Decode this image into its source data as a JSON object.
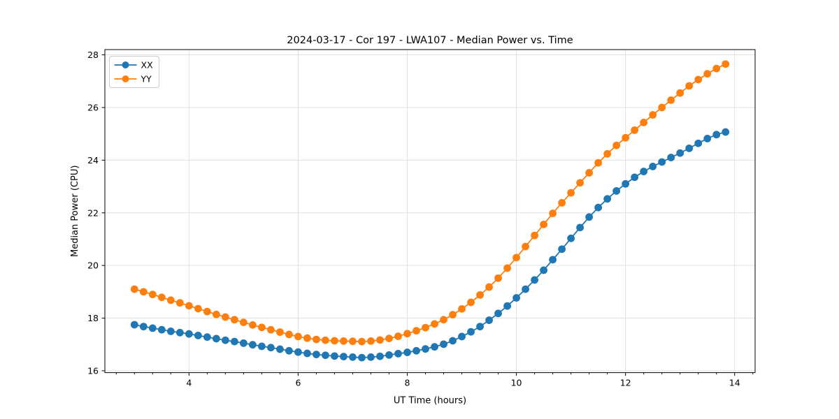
{
  "page": {
    "background": "#ffffff"
  },
  "chart_data": {
    "type": "line",
    "title": "2024-03-17 - Cor 197 - LWA107 - Median Power vs. Time",
    "xlabel": "UT Time (hours)",
    "ylabel": "Median Power (CPU)",
    "xlim": [
      2.458,
      14.375
    ],
    "ylim": [
      15.93,
      28.2
    ],
    "x_ticks": [
      4,
      6,
      8,
      10,
      12,
      14
    ],
    "y_ticks": [
      16,
      18,
      20,
      22,
      24,
      26,
      28
    ],
    "x_minor_tick_step": 0.3333,
    "grid": true,
    "legend_position": "upper-left",
    "legend": [
      "XX",
      "YY"
    ],
    "colors": {
      "XX": "#1f77b4",
      "YY": "#ff7f0e",
      "grid": "#e0e0e0",
      "spine": "#000000"
    },
    "x": [
      3.0,
      3.1667,
      3.3333,
      3.5,
      3.6667,
      3.8333,
      4.0,
      4.1667,
      4.3333,
      4.5,
      4.6667,
      4.8333,
      5.0,
      5.1667,
      5.3333,
      5.5,
      5.6667,
      5.8333,
      6.0,
      6.1667,
      6.3333,
      6.5,
      6.6667,
      6.8333,
      7.0,
      7.1667,
      7.3333,
      7.5,
      7.6667,
      7.8333,
      8.0,
      8.1667,
      8.3333,
      8.5,
      8.6667,
      8.8333,
      9.0,
      9.1667,
      9.3333,
      9.5,
      9.6667,
      9.8333,
      10.0,
      10.1667,
      10.3333,
      10.5,
      10.6667,
      10.8333,
      11.0,
      11.1667,
      11.3333,
      11.5,
      11.6667,
      11.8333,
      12.0,
      12.1667,
      12.3333,
      12.5,
      12.6667,
      12.8333,
      13.0,
      13.1667,
      13.3333,
      13.5,
      13.6667,
      13.8333
    ],
    "series": [
      {
        "name": "XX",
        "color": "#1f77b4",
        "values": [
          17.75,
          17.68,
          17.62,
          17.56,
          17.5,
          17.45,
          17.4,
          17.34,
          17.28,
          17.22,
          17.16,
          17.11,
          17.05,
          16.99,
          16.93,
          16.88,
          16.82,
          16.76,
          16.71,
          16.66,
          16.62,
          16.59,
          16.56,
          16.54,
          16.52,
          16.5,
          16.52,
          16.55,
          16.6,
          16.65,
          16.7,
          16.76,
          16.83,
          16.91,
          17.01,
          17.14,
          17.3,
          17.48,
          17.68,
          17.92,
          18.18,
          18.46,
          18.77,
          19.1,
          19.45,
          19.82,
          20.22,
          20.62,
          21.03,
          21.44,
          21.84,
          22.2,
          22.53,
          22.83,
          23.1,
          23.35,
          23.57,
          23.76,
          23.93,
          24.1,
          24.27,
          24.45,
          24.64,
          24.82,
          24.97,
          25.07
        ]
      },
      {
        "name": "YY",
        "color": "#ff7f0e",
        "values": [
          19.1,
          19.0,
          18.9,
          18.79,
          18.68,
          18.58,
          18.47,
          18.36,
          18.25,
          18.14,
          18.04,
          17.94,
          17.84,
          17.74,
          17.65,
          17.56,
          17.47,
          17.38,
          17.3,
          17.24,
          17.19,
          17.16,
          17.14,
          17.13,
          17.12,
          17.11,
          17.13,
          17.17,
          17.23,
          17.31,
          17.41,
          17.52,
          17.64,
          17.78,
          17.94,
          18.13,
          18.35,
          18.6,
          18.88,
          19.18,
          19.52,
          19.9,
          20.3,
          20.72,
          21.14,
          21.56,
          21.98,
          22.38,
          22.76,
          23.14,
          23.52,
          23.9,
          24.24,
          24.56,
          24.85,
          25.14,
          25.43,
          25.72,
          26.0,
          26.28,
          26.55,
          26.82,
          27.06,
          27.28,
          27.48,
          27.65
        ]
      }
    ]
  }
}
